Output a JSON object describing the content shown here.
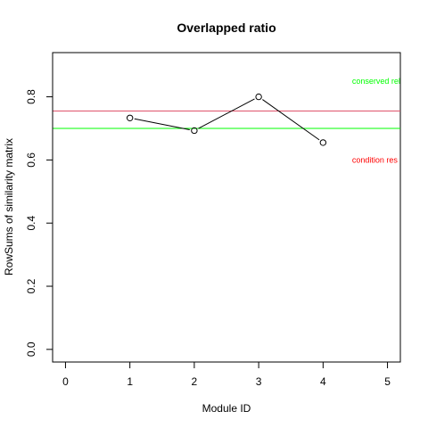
{
  "chart_data": {
    "type": "line",
    "title": "Overlapped ratio",
    "xlabel": "Module ID",
    "ylabel": "RowSums of similarity matrix",
    "xlim": [
      -0.2,
      5.2
    ],
    "ylim": [
      -0.04,
      0.94
    ],
    "x_ticks": [
      0,
      1,
      2,
      3,
      4,
      5
    ],
    "x_tick_labels": [
      "0",
      "1",
      "2",
      "3",
      "4",
      "5"
    ],
    "y_ticks": [
      0.0,
      0.2,
      0.4,
      0.6,
      0.8
    ],
    "y_tick_labels": [
      "0.0",
      "0.2",
      "0.4",
      "0.6",
      "0.8"
    ],
    "grid": false,
    "series": [
      {
        "x": [
          1,
          2,
          3,
          4
        ],
        "y": [
          0.733,
          0.693,
          0.8,
          0.655
        ],
        "color": "#000000",
        "marker": "open-circle"
      }
    ],
    "reference_lines": [
      {
        "y": 0.755,
        "color": "#DF536B"
      },
      {
        "y": 0.7,
        "color": "#00FF00"
      }
    ],
    "annotations": [
      {
        "text": "conserved rel",
        "x": 4.45,
        "y": 0.85,
        "color": "#00FF00"
      },
      {
        "text": "condition res",
        "x": 4.45,
        "y": 0.6,
        "color": "#FF0000"
      }
    ]
  }
}
